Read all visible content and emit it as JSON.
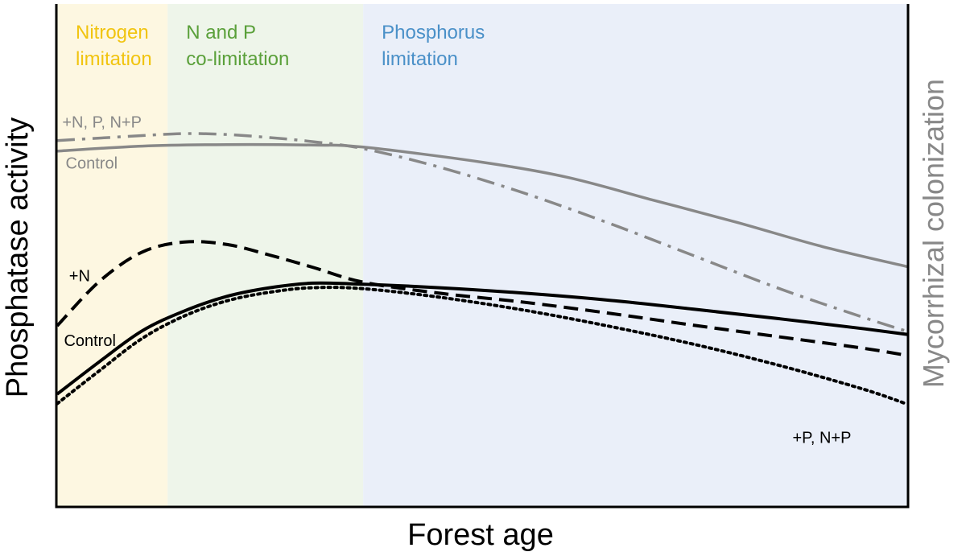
{
  "chart_data": {
    "type": "line",
    "xlabel": "Forest age",
    "ylabel": "Phosphatase activity",
    "y2label": "Mycorrhizal colonization",
    "xlim": [
      0,
      100
    ],
    "ylim": [
      0,
      100
    ],
    "grid": false,
    "regions": [
      {
        "name": "nitrogen",
        "label_lines": [
          "Nitrogen",
          "limitation"
        ],
        "x0": 0,
        "x1": 13,
        "fill": "#fdf7e1",
        "text_color": "#f1c40f"
      },
      {
        "name": "co-limitation",
        "label_lines": [
          "N and P",
          "co-limitation"
        ],
        "x0": 13,
        "x1": 36,
        "fill": "#eef5ea",
        "text_color": "#5aa03a"
      },
      {
        "name": "phosphorus",
        "label_lines": [
          "Phosphorus",
          "limitation"
        ],
        "x0": 36,
        "x1": 100,
        "fill": "#eaeff9",
        "text_color": "#4a90c8"
      }
    ],
    "series": [
      {
        "id": "myco-control",
        "name": "Control",
        "axis": "right",
        "color": "#888888",
        "style": "solid",
        "x": [
          0,
          10,
          20,
          30,
          36,
          50,
          60,
          70,
          80,
          90,
          100
        ],
        "y": [
          70.7,
          71.7,
          72.0,
          71.9,
          71.5,
          68.5,
          65.5,
          61.0,
          56.5,
          51.7,
          47.7
        ]
      },
      {
        "id": "myco-treated",
        "name": "+N, P, N+P",
        "axis": "right",
        "color": "#888888",
        "style": "dashdot",
        "x": [
          0,
          5,
          10,
          15,
          20,
          25,
          30,
          36,
          45,
          55,
          65,
          75,
          85,
          95,
          100
        ],
        "y": [
          72.8,
          73.3,
          73.8,
          74.2,
          74.0,
          73.4,
          72.6,
          71.2,
          67.5,
          62.3,
          56.3,
          49.8,
          43.3,
          37.5,
          34.8
        ]
      },
      {
        "id": "pa-plusN",
        "name": "+N",
        "axis": "left",
        "color": "#000000",
        "style": "dashed",
        "x": [
          0,
          5,
          10,
          15,
          20,
          25,
          30,
          36,
          45,
          55,
          65,
          75,
          85,
          95,
          100
        ],
        "y": [
          35.9,
          44.8,
          50.6,
          52.6,
          52.1,
          50.0,
          47.6,
          44.6,
          42.4,
          40.6,
          38.4,
          36.0,
          33.7,
          31.4,
          30.0
        ]
      },
      {
        "id": "pa-control",
        "name": "Control",
        "axis": "left",
        "color": "#000000",
        "style": "solid",
        "x": [
          0,
          5,
          10,
          15,
          20,
          25,
          30,
          36,
          45,
          55,
          65,
          75,
          85,
          95,
          100
        ],
        "y": [
          22.3,
          28.8,
          34.9,
          38.9,
          41.8,
          43.5,
          44.4,
          44.2,
          43.5,
          42.4,
          41.0,
          39.2,
          37.3,
          35.3,
          34.2
        ]
      },
      {
        "id": "pa-plusP",
        "name": "+P, N+P",
        "axis": "left",
        "color": "#000000",
        "style": "dotted",
        "x": [
          0,
          5,
          10,
          15,
          20,
          25,
          30,
          36,
          45,
          55,
          65,
          75,
          85,
          95,
          100
        ],
        "y": [
          20.4,
          27.0,
          33.4,
          37.9,
          40.9,
          42.6,
          43.5,
          43.3,
          41.6,
          39.0,
          35.8,
          32.2,
          28.0,
          23.2,
          20.3
        ]
      }
    ],
    "annotations": [
      {
        "id": "myco-treated",
        "text": "+N, P, N+P",
        "x": 0.6,
        "y": 75.4,
        "color": "#888888",
        "anchor": "start"
      },
      {
        "id": "myco-control",
        "text": "Control",
        "x": 1.0,
        "y": 67.2,
        "color": "#888888",
        "anchor": "start"
      },
      {
        "id": "pa-plusN",
        "text": "+N",
        "x": 1.4,
        "y": 44.8,
        "color": "#000000",
        "anchor": "start"
      },
      {
        "id": "pa-control",
        "text": "Control",
        "x": 0.8,
        "y": 31.9,
        "color": "#000000",
        "anchor": "start"
      },
      {
        "id": "pa-plusP",
        "text": "+P, N+P",
        "x": 86.5,
        "y": 12.6,
        "color": "#000000",
        "anchor": "start"
      }
    ]
  }
}
